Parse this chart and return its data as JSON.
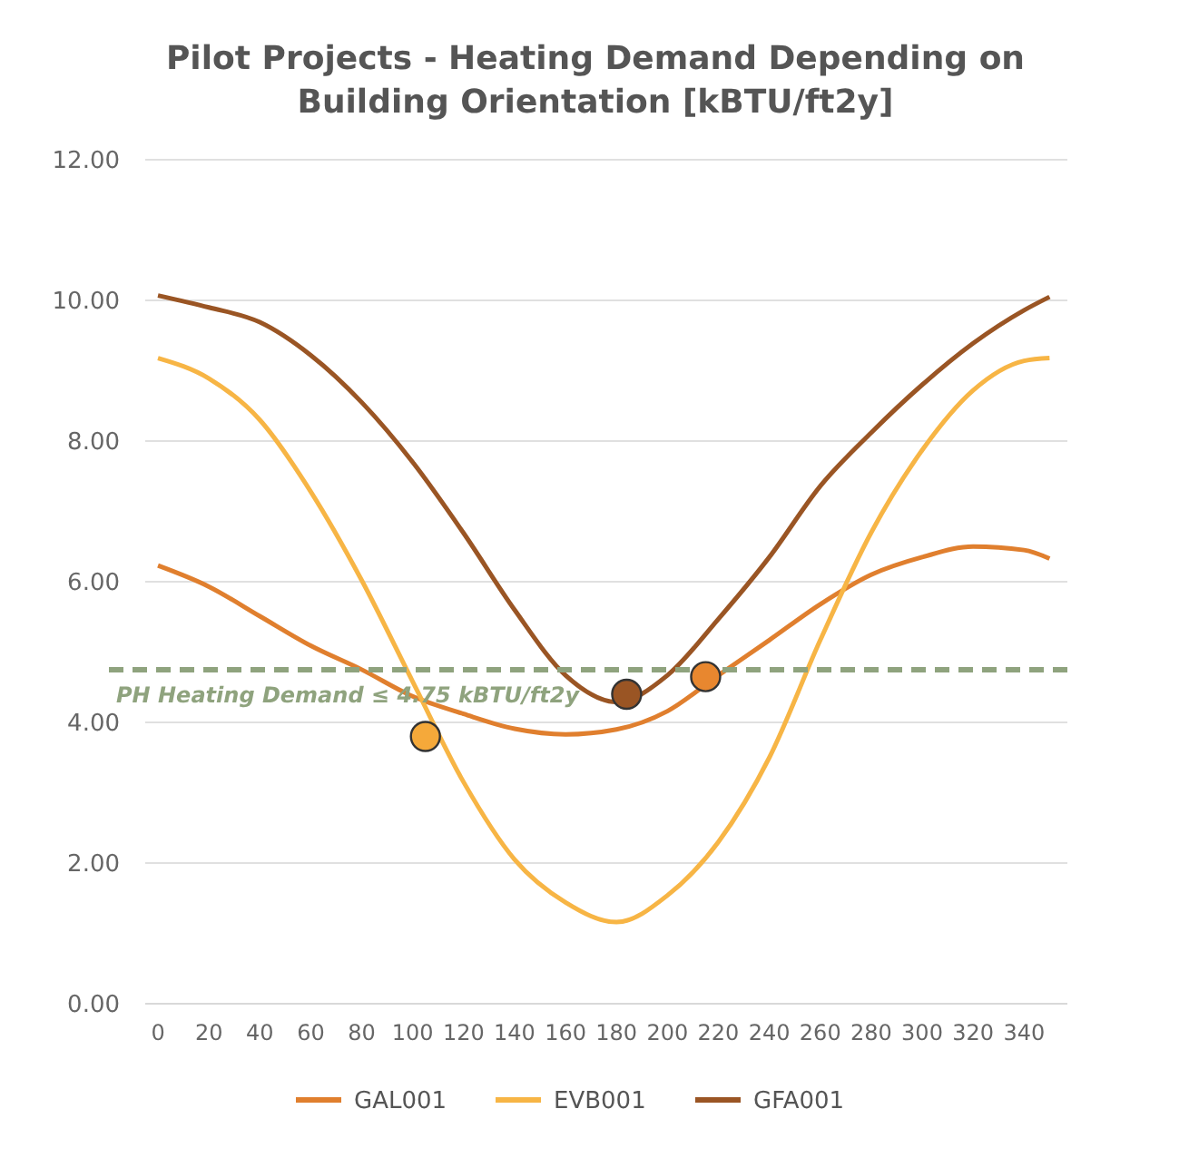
{
  "chart_data": {
    "type": "line",
    "title": "Pilot Projects - Heating Demand Depending on Building Orientation [kBTU/ft2y]",
    "x": [
      0,
      20,
      40,
      60,
      80,
      100,
      120,
      140,
      160,
      180,
      200,
      220,
      240,
      260,
      280,
      300,
      320,
      340,
      350
    ],
    "series": [
      {
        "name": "GAL001",
        "color": "#e07f2e",
        "values": [
          6.23,
          5.93,
          5.51,
          5.09,
          4.75,
          4.37,
          4.12,
          3.91,
          3.83,
          3.9,
          4.16,
          4.67,
          5.17,
          5.68,
          6.1,
          6.35,
          6.5,
          6.45,
          6.33
        ]
      },
      {
        "name": "EVB001",
        "color": "#f7b545",
        "values": [
          9.18,
          8.89,
          8.3,
          7.28,
          6.02,
          4.58,
          3.15,
          2.05,
          1.44,
          1.16,
          1.54,
          2.3,
          3.5,
          5.17,
          6.7,
          7.87,
          8.72,
          9.14,
          9.18
        ]
      },
      {
        "name": "GFA001",
        "color": "#9a5524",
        "values": [
          10.07,
          9.9,
          9.69,
          9.22,
          8.55,
          7.7,
          6.69,
          5.6,
          4.67,
          4.29,
          4.67,
          5.47,
          6.35,
          7.36,
          8.12,
          8.8,
          9.39,
          9.86,
          10.05
        ]
      },
      {
        "type": "scatter",
        "color": "#f5a93a",
        "x": [
          105
        ],
        "values": [
          3.8
        ],
        "marker": "circle"
      },
      {
        "type": "scatter",
        "color": "#9a5524",
        "x": [
          184
        ],
        "values": [
          4.4
        ],
        "marker": "circle"
      },
      {
        "type": "scatter",
        "color": "#e8872f",
        "x": [
          215
        ],
        "values": [
          4.65
        ],
        "marker": "circle"
      }
    ],
    "xlim": [
      -5,
      357
    ],
    "xticks": [
      0,
      20,
      40,
      60,
      80,
      100,
      120,
      140,
      160,
      180,
      200,
      220,
      240,
      260,
      280,
      300,
      320,
      340
    ],
    "ylim": [
      0,
      12
    ],
    "yticks": [
      {
        "value": 0,
        "label": "0.00"
      },
      {
        "value": 2,
        "label": "2.00"
      },
      {
        "value": 4,
        "label": "4.00"
      },
      {
        "value": 6,
        "label": "6.00"
      },
      {
        "value": 8,
        "label": "8.00"
      },
      {
        "value": 10,
        "label": "10.00"
      },
      {
        "value": 12,
        "label": "12.00"
      }
    ],
    "grid": "y",
    "legend": "bottom",
    "marker": "none",
    "line_style": "solid",
    "ref_lines": [
      {
        "axis": "y",
        "value": 4.75,
        "label": "PH Heating Demand ≤ 4.75 kBTU/ft2y",
        "color": "#8fa37e",
        "line_style": "dashed"
      }
    ]
  }
}
